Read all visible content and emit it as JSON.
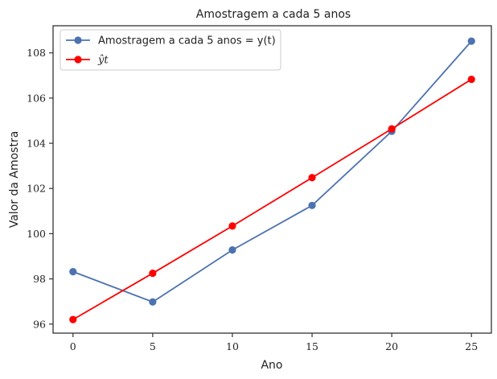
{
  "chart_data": {
    "type": "line",
    "title": "Amostragem a cada 5 anos",
    "xlabel": "Ano",
    "ylabel": "Valor da Amostra",
    "xlim": [
      -1.25,
      26.25
    ],
    "ylim": [
      95.6,
      109.2
    ],
    "xticks": [
      0,
      5,
      10,
      15,
      20,
      25
    ],
    "yticks": [
      96,
      98,
      100,
      102,
      104,
      106,
      108
    ],
    "grid": false,
    "legend_position": "top-left",
    "series": [
      {
        "name": "Amostragem a cada 5 anos = y(t)",
        "color": "#4c72b0",
        "marker": "circle",
        "x": [
          0,
          5,
          10,
          15,
          20,
          25
        ],
        "y": [
          98.32,
          96.98,
          99.28,
          101.25,
          104.53,
          108.52
        ]
      },
      {
        "name": "ŷt",
        "color": "#ff0000",
        "marker": "circle",
        "x": [
          0,
          5,
          10,
          15,
          20,
          25
        ],
        "y": [
          96.2,
          98.25,
          100.34,
          102.48,
          104.64,
          106.83
        ]
      }
    ]
  }
}
